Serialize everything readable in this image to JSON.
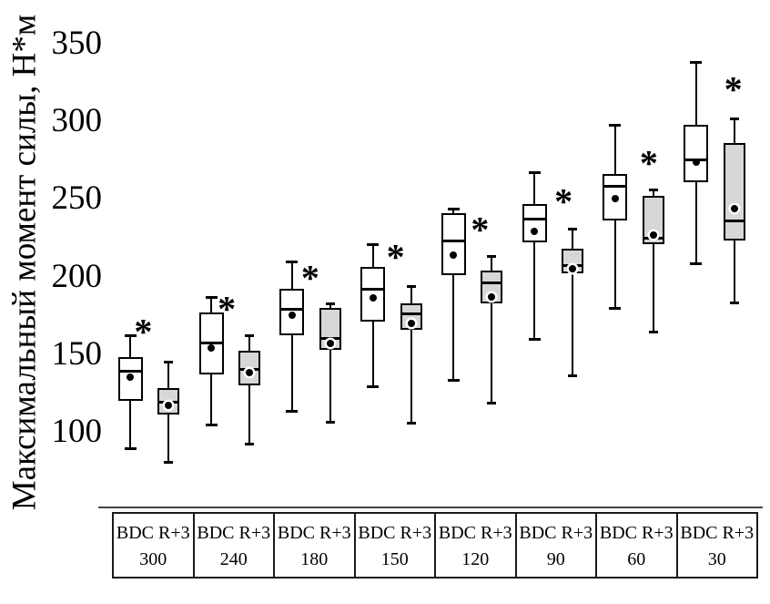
{
  "chart_data": {
    "type": "box",
    "title": "",
    "ylabel": "Максимальный момент силы, Н*м",
    "yticks": [
      350,
      300,
      250,
      200,
      150,
      100
    ],
    "ylim": [
      60,
      360
    ],
    "grid": false,
    "legend": "none",
    "series_names": [
      "BDC",
      "R+3"
    ],
    "cell_header": "BDC R+3",
    "categories": [
      "300",
      "240",
      "180",
      "150",
      "120",
      "90",
      "60",
      "30"
    ],
    "colors": {
      "bdc_fill": "#ffffff",
      "r3_fill": "#d7d7d7",
      "line": "#000000"
    },
    "asterisk_symbol": "*",
    "groups": [
      {
        "category": "300",
        "bdc": {
          "low": 89,
          "q1": 120,
          "median": 139,
          "mean": 135,
          "q3": 148,
          "high": 162
        },
        "r3": {
          "low": 80,
          "q1": 111,
          "median": 119,
          "mean": 117,
          "q3": 128,
          "high": 145
        },
        "asterisk": {
          "dx": -10,
          "value": 165
        }
      },
      {
        "category": "240",
        "bdc": {
          "low": 104,
          "q1": 137,
          "median": 157,
          "mean": 154,
          "q3": 177,
          "high": 187
        },
        "r3": {
          "low": 92,
          "q1": 130,
          "median": 140,
          "mean": 138,
          "q3": 152,
          "high": 162
        },
        "asterisk": {
          "dx": -7,
          "value": 180
        }
      },
      {
        "category": "180",
        "bdc": {
          "low": 113,
          "q1": 162,
          "median": 179,
          "mean": 175,
          "q3": 192,
          "high": 210
        },
        "r3": {
          "low": 106,
          "q1": 153,
          "median": 160,
          "mean": 157,
          "q3": 180,
          "high": 183
        },
        "asterisk": {
          "dx": -4,
          "value": 200
        }
      },
      {
        "category": "150",
        "bdc": {
          "low": 129,
          "q1": 171,
          "median": 192,
          "mean": 186,
          "q3": 206,
          "high": 221
        },
        "r3": {
          "low": 105,
          "q1": 166,
          "median": 176,
          "mean": 170,
          "q3": 183,
          "high": 194
        },
        "asterisk": {
          "dx": 1,
          "value": 213
        }
      },
      {
        "category": "120",
        "bdc": {
          "low": 133,
          "q1": 201,
          "median": 223,
          "mean": 214,
          "q3": 241,
          "high": 244
        },
        "r3": {
          "low": 118,
          "q1": 183,
          "median": 196,
          "mean": 187,
          "q3": 204,
          "high": 213
        },
        "asterisk": {
          "dx": 5,
          "value": 231
        }
      },
      {
        "category": "90",
        "bdc": {
          "low": 159,
          "q1": 222,
          "median": 237,
          "mean": 229,
          "q3": 247,
          "high": 267
        },
        "r3": {
          "low": 136,
          "q1": 202,
          "median": 207,
          "mean": 205,
          "q3": 218,
          "high": 231
        },
        "asterisk": {
          "dx": 8,
          "value": 249
        }
      },
      {
        "category": "60",
        "bdc": {
          "low": 179,
          "q1": 236,
          "median": 258,
          "mean": 250,
          "q3": 266,
          "high": 298
        },
        "r3": {
          "low": 164,
          "q1": 221,
          "median": 225,
          "mean": 227,
          "q3": 252,
          "high": 256
        },
        "asterisk": {
          "dx": 13,
          "value": 274
        }
      },
      {
        "category": "30",
        "bdc": {
          "low": 208,
          "q1": 261,
          "median": 275,
          "mean": 274,
          "q3": 298,
          "high": 338
        },
        "r3": {
          "low": 183,
          "q1": 223,
          "median": 236,
          "mean": 244,
          "q3": 286,
          "high": 302
        },
        "asterisk": {
          "dx": 17,
          "value": 321
        }
      }
    ]
  }
}
